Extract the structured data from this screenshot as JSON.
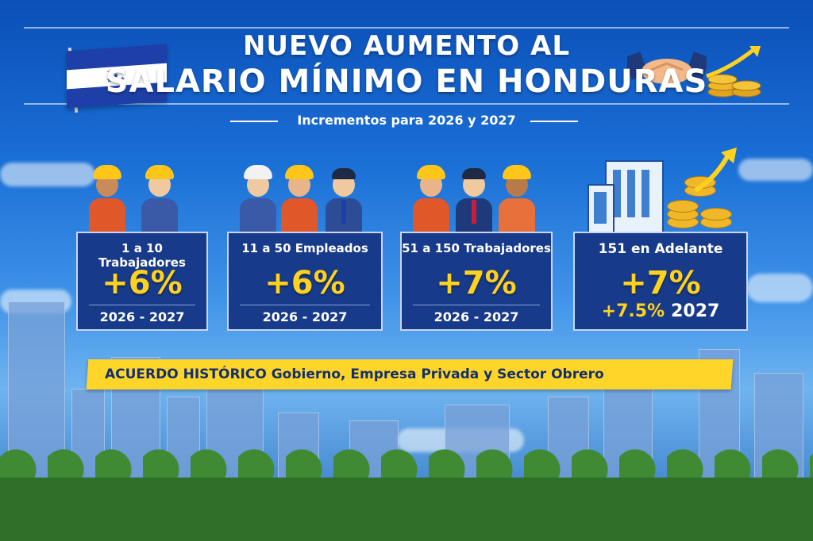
{
  "header": {
    "title_line1": "NUEVO AUMENTO AL",
    "title_line2": "SALARIO MÍNIMO EN HONDURAS",
    "subtitle": "Incrementos para 2026 y 2027"
  },
  "cards": [
    {
      "label": "1 a 10 Trabajadores",
      "percent": "+6%",
      "years": "2026 - 2027"
    },
    {
      "label": "11 a 50 Empleados",
      "percent": "+6%",
      "years": "2026 - 2027"
    },
    {
      "label": "51 a 150 Trabajadores",
      "percent": "+7%",
      "years": "2026 - 2027"
    },
    {
      "label": "151 en Adelante",
      "percent": "+7%",
      "percent_2027": "+7.5%",
      "years": "2027"
    }
  ],
  "banner": {
    "text": "ACUERDO HISTÓRICO Gobierno, Empresa Privada y Sector Obrero"
  },
  "colors": {
    "primary_blue": "#173a8a",
    "accent_yellow": "#ffd21f",
    "banner_yellow": "#ffd52a"
  },
  "icons": [
    "honduras-flag-icon",
    "handshake-icon",
    "coins-growth-icon",
    "building-icon"
  ]
}
